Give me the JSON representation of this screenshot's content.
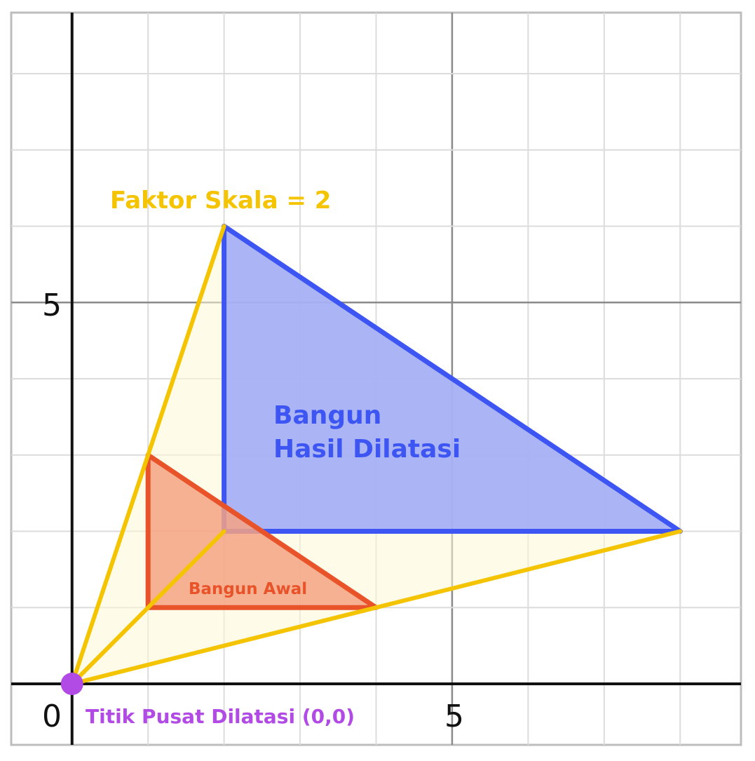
{
  "graph": {
    "x_range": [
      -0.8,
      8.8
    ],
    "y_range": [
      -0.8,
      8.8
    ],
    "grid_minor_step": 1,
    "grid_major_step": 5,
    "tick_labels": {
      "origin": "0",
      "x5": "5",
      "y5": "5"
    }
  },
  "original_shape": {
    "label": "Bangun Awal",
    "vertices": [
      [
        1,
        1
      ],
      [
        4,
        1
      ],
      [
        1,
        3
      ]
    ],
    "stroke_color": "#e8532a",
    "fill_color": "#f4a283"
  },
  "dilated_shape": {
    "label_line1": "Bangun",
    "label_line2": "Hasil Dilatasi",
    "vertices": [
      [
        2,
        2
      ],
      [
        8,
        2
      ],
      [
        2,
        6
      ]
    ],
    "stroke_color": "#3d55f2",
    "fill_color": "#a6b1f4"
  },
  "scale_factor": {
    "label": "Faktor Skala = 2",
    "color": "#f5c400",
    "fill_color": "#fdf7d6"
  },
  "center": {
    "label": "Titik Pusat Dilatasi (0,0)",
    "point": [
      0,
      0
    ],
    "color": "#b24be6"
  },
  "colors": {
    "grid_minor": "#dcdcdc",
    "grid_major": "#8a8a8a",
    "axis": "#111111",
    "frame": "#bdbdbd"
  }
}
